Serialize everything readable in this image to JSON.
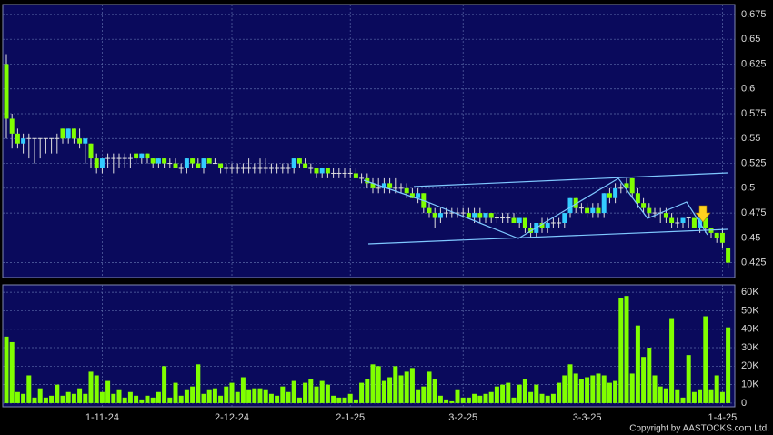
{
  "chart_data": {
    "type": "candlestick",
    "categories": [
      null,
      null,
      null,
      null,
      null,
      null,
      null,
      null,
      null,
      null,
      null,
      null,
      null,
      null,
      null,
      null,
      null,
      "1-11-24",
      null,
      null,
      null,
      null,
      null,
      null,
      null,
      null,
      null,
      null,
      null,
      null,
      null,
      null,
      null,
      null,
      null,
      null,
      null,
      null,
      null,
      null,
      "2-12-24",
      null,
      null,
      null,
      null,
      null,
      null,
      null,
      null,
      null,
      null,
      null,
      null,
      null,
      null,
      null,
      null,
      null,
      null,
      null,
      null,
      "2-1-25",
      null,
      null,
      null,
      null,
      null,
      null,
      null,
      null,
      null,
      null,
      null,
      null,
      null,
      null,
      null,
      null,
      null,
      null,
      null,
      "3-2-25",
      null,
      null,
      null,
      null,
      null,
      null,
      null,
      null,
      null,
      null,
      null,
      null,
      null,
      null,
      null,
      null,
      null,
      null,
      null,
      null,
      null,
      "3-3-25",
      null,
      null,
      null,
      null,
      null,
      null,
      null,
      null,
      null,
      null,
      null,
      null,
      null,
      null,
      null,
      null,
      null,
      null,
      null,
      null,
      null,
      null,
      null,
      "1-4-25",
      null
    ],
    "ohlc": [
      [
        0.625,
        0.635,
        0.55,
        0.57
      ],
      [
        0.57,
        0.575,
        0.54,
        0.555
      ],
      [
        0.555,
        0.56,
        0.54,
        0.545
      ],
      [
        0.545,
        0.555,
        0.535,
        0.55
      ],
      [
        0.55,
        0.555,
        0.53,
        0.55
      ],
      [
        0.55,
        0.55,
        0.525,
        0.55
      ],
      [
        0.55,
        0.55,
        0.53,
        0.55
      ],
      [
        0.55,
        0.55,
        0.535,
        0.55
      ],
      [
        0.55,
        0.55,
        0.535,
        0.55
      ],
      [
        0.55,
        0.555,
        0.535,
        0.55
      ],
      [
        0.56,
        0.56,
        0.545,
        0.55
      ],
      [
        0.55,
        0.56,
        0.545,
        0.56
      ],
      [
        0.56,
        0.56,
        0.545,
        0.55
      ],
      [
        0.55,
        0.56,
        0.54,
        0.545
      ],
      [
        0.545,
        0.55,
        0.525,
        0.55
      ],
      [
        0.545,
        0.545,
        0.52,
        0.53
      ],
      [
        0.53,
        0.535,
        0.515,
        0.52
      ],
      [
        0.52,
        0.53,
        0.515,
        0.53
      ],
      [
        0.53,
        0.535,
        0.52,
        0.53
      ],
      [
        0.53,
        0.535,
        0.515,
        0.53
      ],
      [
        0.53,
        0.535,
        0.52,
        0.53
      ],
      [
        0.53,
        0.535,
        0.52,
        0.53
      ],
      [
        0.53,
        0.535,
        0.52,
        0.53
      ],
      [
        0.535,
        0.535,
        0.525,
        0.53
      ],
      [
        0.53,
        0.535,
        0.525,
        0.535
      ],
      [
        0.535,
        0.535,
        0.525,
        0.53
      ],
      [
        0.53,
        0.53,
        0.52,
        0.525
      ],
      [
        0.525,
        0.53,
        0.52,
        0.53
      ],
      [
        0.53,
        0.53,
        0.52,
        0.525
      ],
      [
        0.525,
        0.53,
        0.52,
        0.525
      ],
      [
        0.525,
        0.53,
        0.52,
        0.52
      ],
      [
        0.52,
        0.525,
        0.515,
        0.52
      ],
      [
        0.52,
        0.53,
        0.515,
        0.53
      ],
      [
        0.53,
        0.53,
        0.52,
        0.525
      ],
      [
        0.525,
        0.53,
        0.52,
        0.52
      ],
      [
        0.52,
        0.53,
        0.515,
        0.53
      ],
      [
        0.53,
        0.53,
        0.525,
        0.525
      ],
      [
        0.525,
        0.53,
        0.525,
        0.525
      ],
      [
        0.525,
        0.525,
        0.515,
        0.52
      ],
      [
        0.52,
        0.525,
        0.515,
        0.52
      ],
      [
        0.52,
        0.525,
        0.515,
        0.52
      ],
      [
        0.52,
        0.525,
        0.515,
        0.52
      ],
      [
        0.52,
        0.525,
        0.515,
        0.52
      ],
      [
        0.52,
        0.53,
        0.515,
        0.52
      ],
      [
        0.52,
        0.525,
        0.515,
        0.52
      ],
      [
        0.52,
        0.53,
        0.515,
        0.52
      ],
      [
        0.52,
        0.53,
        0.515,
        0.52
      ],
      [
        0.52,
        0.525,
        0.515,
        0.52
      ],
      [
        0.52,
        0.525,
        0.515,
        0.52
      ],
      [
        0.52,
        0.525,
        0.515,
        0.52
      ],
      [
        0.52,
        0.525,
        0.515,
        0.52
      ],
      [
        0.52,
        0.53,
        0.515,
        0.53
      ],
      [
        0.53,
        0.53,
        0.52,
        0.525
      ],
      [
        0.525,
        0.53,
        0.52,
        0.52
      ],
      [
        0.52,
        0.525,
        0.515,
        0.52
      ],
      [
        0.52,
        0.52,
        0.51,
        0.515
      ],
      [
        0.515,
        0.52,
        0.51,
        0.52
      ],
      [
        0.52,
        0.52,
        0.51,
        0.515
      ],
      [
        0.515,
        0.52,
        0.51,
        0.515
      ],
      [
        0.515,
        0.52,
        0.51,
        0.515
      ],
      [
        0.515,
        0.52,
        0.51,
        0.515
      ],
      [
        0.515,
        0.52,
        0.51,
        0.515
      ],
      [
        0.515,
        0.52,
        0.51,
        0.51
      ],
      [
        0.51,
        0.515,
        0.505,
        0.51
      ],
      [
        0.51,
        0.515,
        0.5,
        0.505
      ],
      [
        0.505,
        0.51,
        0.495,
        0.5
      ],
      [
        0.5,
        0.51,
        0.495,
        0.5
      ],
      [
        0.5,
        0.51,
        0.495,
        0.505
      ],
      [
        0.505,
        0.51,
        0.495,
        0.5
      ],
      [
        0.5,
        0.51,
        0.495,
        0.5
      ],
      [
        0.5,
        0.505,
        0.495,
        0.5
      ],
      [
        0.5,
        0.505,
        0.49,
        0.495
      ],
      [
        0.495,
        0.5,
        0.49,
        0.49
      ],
      [
        0.49,
        0.5,
        0.485,
        0.495
      ],
      [
        0.495,
        0.495,
        0.475,
        0.48
      ],
      [
        0.48,
        0.485,
        0.47,
        0.475
      ],
      [
        0.475,
        0.48,
        0.46,
        0.47
      ],
      [
        0.47,
        0.48,
        0.465,
        0.475
      ],
      [
        0.475,
        0.48,
        0.47,
        0.475
      ],
      [
        0.475,
        0.48,
        0.47,
        0.475
      ],
      [
        0.475,
        0.48,
        0.47,
        0.475
      ],
      [
        0.475,
        0.48,
        0.47,
        0.475
      ],
      [
        0.475,
        0.48,
        0.47,
        0.47
      ],
      [
        0.47,
        0.48,
        0.465,
        0.475
      ],
      [
        0.475,
        0.48,
        0.465,
        0.47
      ],
      [
        0.47,
        0.475,
        0.465,
        0.475
      ],
      [
        0.475,
        0.475,
        0.465,
        0.47
      ],
      [
        0.47,
        0.475,
        0.465,
        0.47
      ],
      [
        0.47,
        0.475,
        0.465,
        0.47
      ],
      [
        0.47,
        0.475,
        0.465,
        0.47
      ],
      [
        0.47,
        0.475,
        0.465,
        0.465
      ],
      [
        0.465,
        0.47,
        0.46,
        0.47
      ],
      [
        0.47,
        0.47,
        0.455,
        0.46
      ],
      [
        0.46,
        0.465,
        0.45,
        0.455
      ],
      [
        0.455,
        0.465,
        0.45,
        0.465
      ],
      [
        0.465,
        0.47,
        0.455,
        0.46
      ],
      [
        0.46,
        0.47,
        0.455,
        0.465
      ],
      [
        0.465,
        0.47,
        0.46,
        0.465
      ],
      [
        0.465,
        0.47,
        0.46,
        0.465
      ],
      [
        0.465,
        0.475,
        0.46,
        0.475
      ],
      [
        0.475,
        0.49,
        0.47,
        0.49
      ],
      [
        0.49,
        0.49,
        0.475,
        0.48
      ],
      [
        0.48,
        0.485,
        0.475,
        0.48
      ],
      [
        0.48,
        0.485,
        0.47,
        0.475
      ],
      [
        0.475,
        0.485,
        0.47,
        0.48
      ],
      [
        0.48,
        0.485,
        0.47,
        0.475
      ],
      [
        0.475,
        0.495,
        0.47,
        0.495
      ],
      [
        0.495,
        0.5,
        0.485,
        0.49
      ],
      [
        0.49,
        0.505,
        0.485,
        0.5
      ],
      [
        0.5,
        0.505,
        0.495,
        0.5
      ],
      [
        0.505,
        0.51,
        0.495,
        0.5
      ],
      [
        0.51,
        0.51,
        0.49,
        0.495
      ],
      [
        0.495,
        0.5,
        0.48,
        0.485
      ],
      [
        0.485,
        0.49,
        0.475,
        0.48
      ],
      [
        0.48,
        0.485,
        0.47,
        0.475
      ],
      [
        0.475,
        0.48,
        0.47,
        0.475
      ],
      [
        0.475,
        0.48,
        0.465,
        0.475
      ],
      [
        0.475,
        0.48,
        0.465,
        0.47
      ],
      [
        0.47,
        0.475,
        0.46,
        0.465
      ],
      [
        0.465,
        0.47,
        0.46,
        0.465
      ],
      [
        0.465,
        0.47,
        0.46,
        0.47
      ],
      [
        0.47,
        0.47,
        0.46,
        0.47
      ],
      [
        0.47,
        0.47,
        0.46,
        0.46
      ],
      [
        0.46,
        0.47,
        0.455,
        0.47
      ],
      [
        0.47,
        0.47,
        0.455,
        0.46
      ],
      [
        0.46,
        0.46,
        0.45,
        0.455
      ],
      [
        0.455,
        0.455,
        0.445,
        0.45
      ],
      [
        0.455,
        0.46,
        0.44,
        0.445
      ],
      [
        0.44,
        0.44,
        0.42,
        0.425
      ]
    ],
    "up_color": "#33ccff",
    "down_color": "#80ff00",
    "flat_color": "#e0e0e0",
    "ylim": [
      0.41,
      0.685
    ],
    "yticks": [
      0.425,
      0.45,
      0.475,
      0.5,
      0.525,
      0.55,
      0.575,
      0.6,
      0.625,
      0.65,
      0.675
    ],
    "grid": true,
    "volume": {
      "color": "#80ff00",
      "values": [
        36000,
        33000,
        6000,
        5000,
        15000,
        3000,
        8000,
        3000,
        4000,
        10000,
        4000,
        6000,
        5000,
        8000,
        5000,
        17000,
        15000,
        6000,
        12000,
        5000,
        7000,
        3000,
        6000,
        4000,
        2000,
        4000,
        3000,
        6000,
        20000,
        3000,
        11000,
        4000,
        7000,
        9000,
        21000,
        5000,
        7000,
        8000,
        4000,
        9000,
        11000,
        6000,
        14000,
        7000,
        8000,
        8000,
        7000,
        5000,
        4000,
        9000,
        6000,
        12000,
        3000,
        11000,
        13000,
        9000,
        12000,
        10000,
        4000,
        3000,
        3000,
        5000,
        2000,
        11000,
        13000,
        21000,
        20000,
        12000,
        14000,
        20000,
        15000,
        17000,
        19000,
        7000,
        9000,
        17000,
        13000,
        4000,
        2000,
        1000,
        7000,
        3000,
        3000,
        5000,
        4000,
        5000,
        6000,
        9000,
        10000,
        11000,
        3000,
        10000,
        13000,
        6000,
        10000,
        5000,
        4000,
        5000,
        11000,
        15000,
        21000,
        16000,
        13000,
        14000,
        15000,
        16000,
        15000,
        11000,
        12000,
        57000,
        58000,
        16000,
        42000,
        25000,
        30000,
        15000,
        9000,
        8000,
        46000,
        7000,
        3000,
        26000,
        6000,
        7000,
        47000,
        7000,
        15000,
        6000,
        41000
      ],
      "ylim": [
        -2000,
        64000
      ],
      "yticks": [
        0,
        {
          "value": 10000,
          "label": "10K"
        },
        {
          "value": 20000,
          "label": "20K"
        },
        {
          "value": 30000,
          "label": "30K"
        },
        {
          "value": 40000,
          "label": "40K"
        },
        {
          "value": 50000,
          "label": "50K"
        },
        {
          "value": 60000,
          "label": "60K"
        }
      ]
    }
  },
  "copyright": "Copyright by AASTOCKS.com Ltd."
}
